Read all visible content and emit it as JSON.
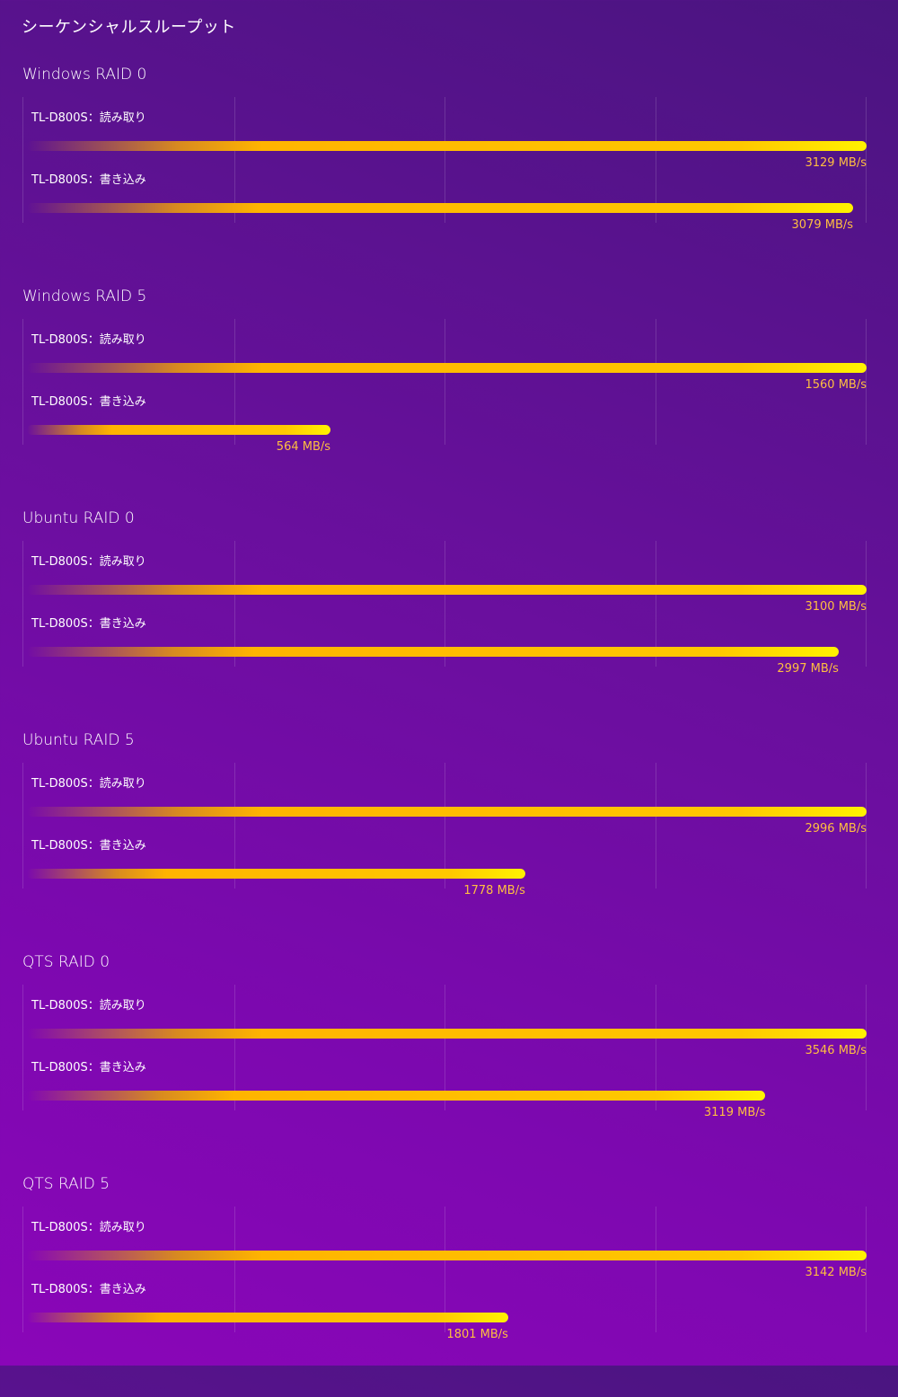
{
  "page_title": "シーケンシャルスループット",
  "chart_data": {
    "type": "bar",
    "title": "シーケンシャルスループット",
    "unit": "MB/s",
    "grid": true,
    "groups": [
      {
        "title": "Windows RAID 0",
        "series": [
          {
            "name": "TL-D800S：読み取り",
            "value": 3129,
            "label": "3129 MB/s"
          },
          {
            "name": "TL-D800S：書き込み",
            "value": 3079,
            "label": "3079 MB/s"
          }
        ]
      },
      {
        "title": "Windows RAID 5",
        "series": [
          {
            "name": "TL-D800S：読み取り",
            "value": 1560,
            "label": "1560 MB/s"
          },
          {
            "name": "TL-D800S：書き込み",
            "value": 564,
            "label": "564 MB/s"
          }
        ]
      },
      {
        "title": "Ubuntu RAID 0",
        "series": [
          {
            "name": "TL-D800S：読み取り",
            "value": 3100,
            "label": "3100 MB/s"
          },
          {
            "name": "TL-D800S：書き込み",
            "value": 2997,
            "label": "2997 MB/s"
          }
        ]
      },
      {
        "title": "Ubuntu RAID 5",
        "series": [
          {
            "name": "TL-D800S：読み取り",
            "value": 2996,
            "label": "2996 MB/s"
          },
          {
            "name": "TL-D800S：書き込み",
            "value": 1778,
            "label": "1778 MB/s"
          }
        ]
      },
      {
        "title": "QTS RAID 0",
        "series": [
          {
            "name": "TL-D800S：読み取り",
            "value": 3546,
            "label": "3546 MB/s"
          },
          {
            "name": "TL-D800S：書き込み",
            "value": 3119,
            "label": "3119 MB/s"
          }
        ]
      },
      {
        "title": "QTS RAID 5",
        "series": [
          {
            "name": "TL-D800S：読み取り",
            "value": 3142,
            "label": "3142 MB/s"
          },
          {
            "name": "TL-D800S：書き込み",
            "value": 1801,
            "label": "1801 MB/s"
          }
        ]
      }
    ]
  },
  "colors": {
    "background_top": "#4a1580",
    "background_bottom": "#8a06b8",
    "bar_start": "#d88a20",
    "bar_mid": "#ffc800",
    "bar_end": "#fff200",
    "value_text": "#ffbf40"
  }
}
